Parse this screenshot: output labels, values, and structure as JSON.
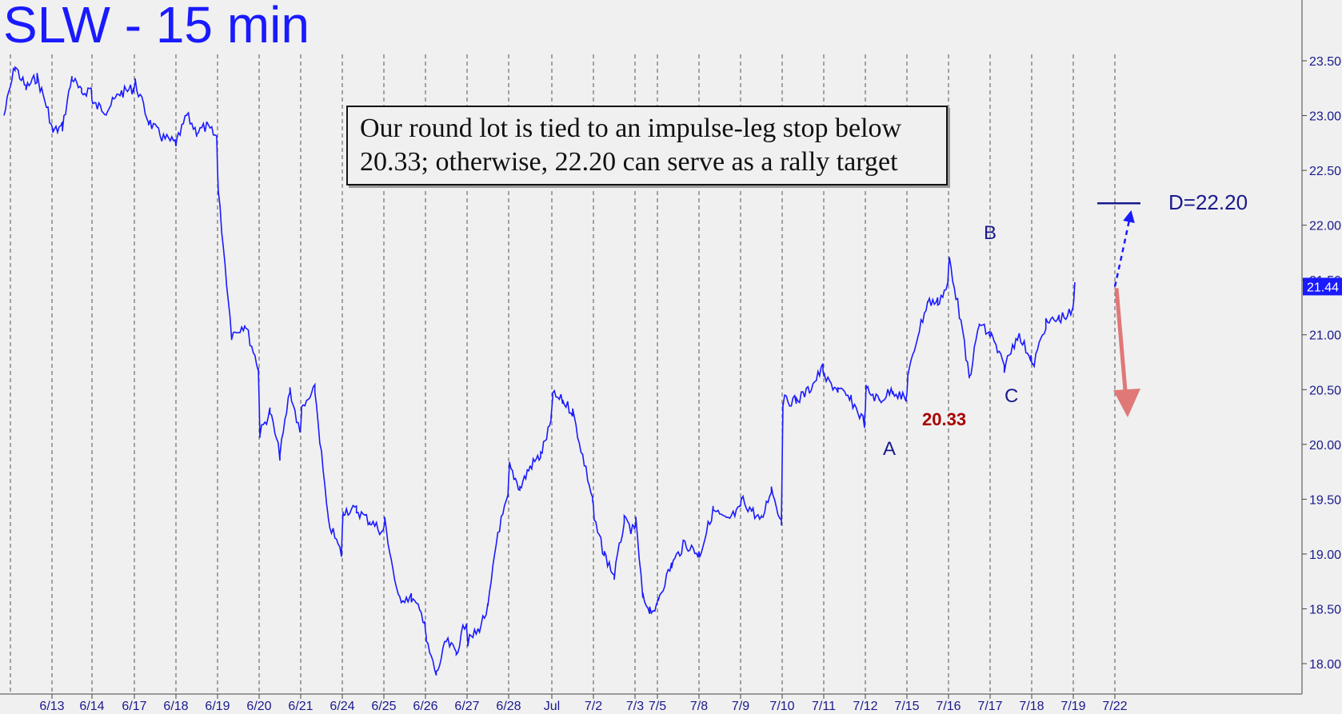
{
  "title": "SLW - 15 min",
  "annotation": {
    "line1": "Our round lot is tied to an impulse-leg stop below",
    "line2": "20.33; otherwise, 22.20 can serve as a rally target"
  },
  "labels": {
    "wave_a": "A",
    "wave_b": "B",
    "wave_c": "C",
    "stop": "20.33",
    "target": "D=22.20",
    "last_price": "21.44"
  },
  "colors": {
    "price": "#1a1aff",
    "axis_text": "#1a1a8c",
    "stop_label": "#aa0000",
    "down_arrow": "#e07878",
    "last_price_tag": "#1a1aff"
  },
  "chart_data": {
    "type": "line",
    "title": "SLW - 15 min",
    "ylim": [
      17.8,
      23.65
    ],
    "y_ticks": [
      "23.50",
      "23.00",
      "22.50",
      "22.00",
      "21.50",
      "21.00",
      "20.50",
      "20.00",
      "19.50",
      "19.00",
      "18.50",
      "18.00"
    ],
    "x_ticks": [
      "6/13",
      "6/14",
      "6/17",
      "6/18",
      "6/19",
      "6/20",
      "6/21",
      "6/24",
      "6/25",
      "6/26",
      "6/27",
      "6/28",
      "Jul",
      "7/2",
      "7/3",
      "7/5",
      "7/8",
      "7/9",
      "7/10",
      "7/11",
      "7/12",
      "7/15",
      "7/16",
      "7/17",
      "7/18",
      "7/19",
      "7/22"
    ],
    "grid": "vertical dashed",
    "last_price": 21.44,
    "target": 22.2,
    "stop": 20.33,
    "series": [
      {
        "values": [
          [
            "6/13",
            23.0
          ],
          [
            "6/13",
            23.45
          ],
          [
            "6/13",
            23.25
          ],
          [
            "6/13",
            23.35
          ],
          [
            "6/13",
            23.05
          ],
          [
            "6/14",
            22.85
          ],
          [
            "6/14",
            22.9
          ],
          [
            "6/14",
            23.35
          ],
          [
            "6/14",
            23.2
          ],
          [
            "6/14",
            23.25
          ],
          [
            "6/17",
            23.1
          ],
          [
            "6/17",
            23.05
          ],
          [
            "6/17",
            23.2
          ],
          [
            "6/17",
            23.25
          ],
          [
            "6/18",
            23.3
          ],
          [
            "6/18",
            22.95
          ],
          [
            "6/18",
            22.8
          ],
          [
            "6/18",
            22.75
          ],
          [
            "6/19",
            22.75
          ],
          [
            "6/19",
            23.0
          ],
          [
            "6/19",
            22.85
          ],
          [
            "6/19",
            22.9
          ],
          [
            "6/19",
            22.8
          ],
          [
            "6/20",
            22.3
          ],
          [
            "6/20",
            21.0
          ],
          [
            "6/20",
            21.1
          ],
          [
            "6/20",
            20.7
          ],
          [
            "6/21",
            20.1
          ],
          [
            "6/21",
            20.3
          ],
          [
            "6/21",
            19.9
          ],
          [
            "6/21",
            20.5
          ],
          [
            "6/21",
            20.1
          ],
          [
            "6/24",
            20.3
          ],
          [
            "6/24",
            20.5
          ],
          [
            "6/24",
            19.3
          ],
          [
            "6/24",
            19.0
          ],
          [
            "6/25",
            19.4
          ],
          [
            "6/25",
            19.4
          ],
          [
            "6/25",
            19.3
          ],
          [
            "6/25",
            19.2
          ],
          [
            "6/26",
            19.3
          ],
          [
            "6/26",
            18.6
          ],
          [
            "6/26",
            18.6
          ],
          [
            "6/26",
            18.4
          ],
          [
            "6/27",
            18.2
          ],
          [
            "6/27",
            17.9
          ],
          [
            "6/27",
            18.2
          ],
          [
            "6/27",
            18.1
          ],
          [
            "6/27",
            18.4
          ],
          [
            "6/28",
            18.2
          ],
          [
            "6/28",
            18.3
          ],
          [
            "6/28",
            18.5
          ],
          [
            "6/28",
            19.2
          ],
          [
            "6/28",
            19.5
          ],
          [
            "Jul",
            19.8
          ],
          [
            "Jul",
            19.6
          ],
          [
            "Jul",
            19.8
          ],
          [
            "Jul",
            19.9
          ],
          [
            "Jul",
            20.2
          ],
          [
            "7/2",
            20.45
          ],
          [
            "7/2",
            20.4
          ],
          [
            "7/2",
            20.3
          ],
          [
            "7/2",
            19.9
          ],
          [
            "7/2",
            19.5
          ],
          [
            "7/3",
            19.3
          ],
          [
            "7/3",
            19.0
          ],
          [
            "7/3",
            18.8
          ],
          [
            "7/3",
            19.3
          ],
          [
            "7/3",
            19.2
          ],
          [
            "7/5",
            19.3
          ],
          [
            "7/5",
            18.6
          ],
          [
            "7/5",
            18.5
          ],
          [
            "7/5",
            18.5
          ],
          [
            "7/8",
            18.6
          ],
          [
            "7/8",
            18.9
          ],
          [
            "7/8",
            19.1
          ],
          [
            "7/8",
            19.0
          ],
          [
            "7/9",
            19.0
          ],
          [
            "7/9",
            19.4
          ],
          [
            "7/9",
            19.3
          ],
          [
            "7/9",
            19.4
          ],
          [
            "7/10",
            19.5
          ],
          [
            "7/10",
            19.4
          ],
          [
            "7/10",
            19.3
          ],
          [
            "7/10",
            19.6
          ],
          [
            "7/10",
            19.3
          ],
          [
            "7/11",
            20.4
          ],
          [
            "7/11",
            20.4
          ],
          [
            "7/11",
            20.5
          ],
          [
            "7/11",
            20.7
          ],
          [
            "7/12",
            20.6
          ],
          [
            "7/12",
            20.5
          ],
          [
            "7/12",
            20.4
          ],
          [
            "7/12",
            20.2
          ],
          [
            "7/15",
            20.5
          ],
          [
            "7/15",
            20.4
          ],
          [
            "7/15",
            20.5
          ],
          [
            "7/15",
            20.4
          ],
          [
            "7/16",
            20.6
          ],
          [
            "7/16",
            21.0
          ],
          [
            "7/16",
            21.3
          ],
          [
            "7/16",
            21.3
          ],
          [
            "7/16",
            21.45
          ],
          [
            "7/17",
            21.7
          ],
          [
            "7/17",
            21.2
          ],
          [
            "7/17",
            20.6
          ],
          [
            "7/17",
            21.1
          ],
          [
            "7/17",
            21.0
          ],
          [
            "7/18",
            21.0
          ],
          [
            "7/18",
            20.7
          ],
          [
            "7/18",
            21.0
          ],
          [
            "7/18",
            20.8
          ],
          [
            "7/19",
            20.7
          ],
          [
            "7/19",
            21.1
          ],
          [
            "7/19",
            21.15
          ],
          [
            "7/19",
            21.2
          ],
          [
            "7/22",
            21.44
          ]
        ]
      }
    ]
  }
}
